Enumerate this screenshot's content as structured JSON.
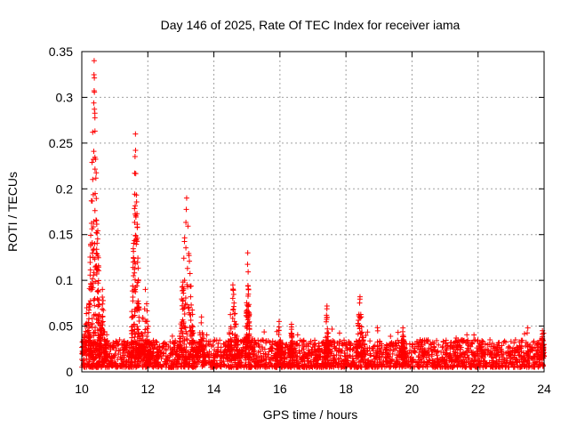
{
  "chart_data": {
    "type": "scatter",
    "title": "Day 146 of 2025, Rate Of TEC Index for receiver iama",
    "xlabel": "GPS time / hours",
    "ylabel": "ROTI / TECUs",
    "xlim": [
      10,
      24
    ],
    "ylim": [
      0,
      0.35
    ],
    "xticks": [
      10,
      12,
      14,
      16,
      18,
      20,
      22,
      24
    ],
    "yticks": [
      0,
      0.05,
      0.1,
      0.15,
      0.2,
      0.25,
      0.3,
      0.35
    ],
    "xtick_labels": [
      "10",
      "12",
      "14",
      "16",
      "18",
      "20",
      "22",
      "24"
    ],
    "ytick_labels": [
      "0",
      "0.05",
      "0.1",
      "0.15",
      "0.2",
      "0.25",
      "0.3",
      "0.35"
    ],
    "grid": true,
    "marker": "+",
    "color": "#ff0000",
    "series": [
      {
        "name": "ROTI",
        "spikes": [
          {
            "x_start": 10.0,
            "x_end": 10.3,
            "peak": 0.07
          },
          {
            "x_start": 10.2,
            "x_end": 10.55,
            "peak": 0.34
          },
          {
            "x_start": 10.5,
            "x_end": 10.75,
            "peak": 0.09
          },
          {
            "x_start": 11.5,
            "x_end": 11.75,
            "peak": 0.26
          },
          {
            "x_start": 11.75,
            "x_end": 12.1,
            "peak": 0.09
          },
          {
            "x_start": 12.95,
            "x_end": 13.4,
            "peak": 0.19
          },
          {
            "x_start": 13.5,
            "x_end": 13.75,
            "peak": 0.06
          },
          {
            "x_start": 14.4,
            "x_end": 14.75,
            "peak": 0.095
          },
          {
            "x_start": 14.95,
            "x_end": 15.1,
            "peak": 0.13
          },
          {
            "x_start": 15.9,
            "x_end": 16.05,
            "peak": 0.055
          },
          {
            "x_start": 16.3,
            "x_end": 16.4,
            "peak": 0.052
          },
          {
            "x_start": 17.35,
            "x_end": 17.5,
            "peak": 0.072
          },
          {
            "x_start": 18.3,
            "x_end": 18.55,
            "peak": 0.082
          },
          {
            "x_start": 19.65,
            "x_end": 19.8,
            "peak": 0.048
          },
          {
            "x_start": 23.9,
            "x_end": 24.0,
            "peak": 0.045
          }
        ],
        "baseline": {
          "x_start": 10.0,
          "x_end": 24.0,
          "min": 0.005,
          "max": 0.035
        }
      }
    ]
  }
}
